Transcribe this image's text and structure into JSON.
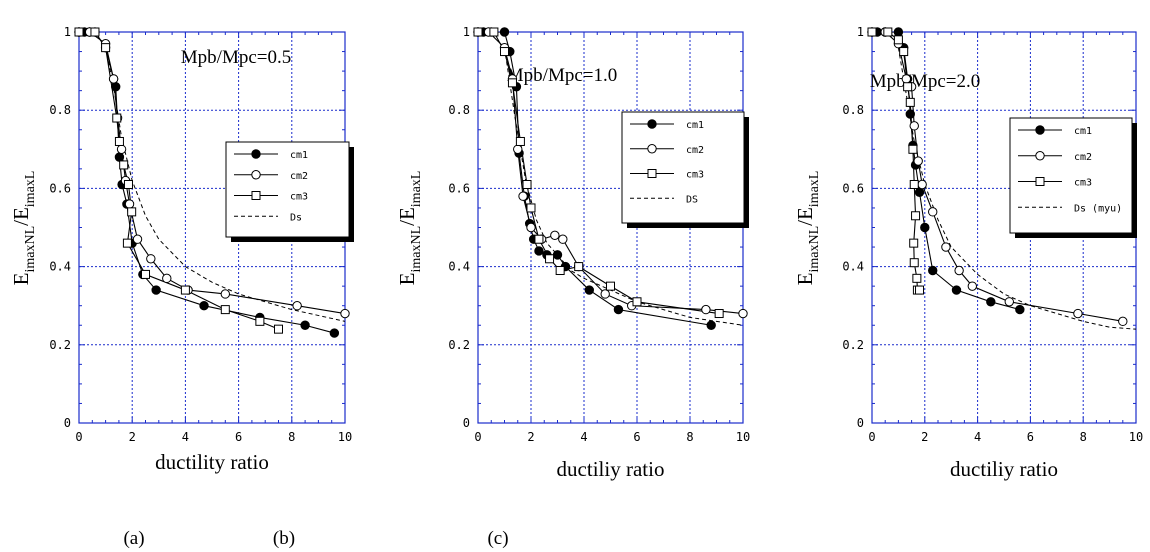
{
  "chart_data": [
    {
      "type": "line",
      "ylabel": {
        "main1": "E",
        "sub1": "imaxNL",
        "main2": "/E",
        "sub2": "imaxL"
      },
      "xlabel": "ductility ratio",
      "annotation": "Mpb/Mpc=0.5",
      "xlim": [
        0,
        10
      ],
      "ylim": [
        0,
        1
      ],
      "xticks": [
        "0",
        "2",
        "4",
        "6",
        "8",
        "10"
      ],
      "yticks": [
        "0",
        "0.2",
        "0.4",
        "0.6",
        "0.8",
        "1"
      ],
      "grid": true,
      "legend": [
        "cm1",
        "cm2",
        "cm3",
        "Ds"
      ],
      "series": [
        {
          "name": "cm1",
          "marker": "filled-circle",
          "x": [
            0,
            0.2,
            0.4,
            0.6,
            1.0,
            1.3,
            1.38,
            1.52,
            1.62,
            1.8,
            2.0,
            2.4,
            2.9,
            4.7,
            6.8,
            8.5,
            9.6
          ],
          "y": [
            1,
            1,
            1,
            1,
            0.96,
            0.88,
            0.86,
            0.68,
            0.61,
            0.56,
            0.46,
            0.38,
            0.34,
            0.3,
            0.27,
            0.25,
            0.23
          ]
        },
        {
          "name": "cm2",
          "marker": "open-circle",
          "x": [
            0,
            0.4,
            1.0,
            1.3,
            1.45,
            1.6,
            1.75,
            1.9,
            2.2,
            2.7,
            3.3,
            4.1,
            5.5,
            8.2,
            10
          ],
          "y": [
            1,
            1,
            0.97,
            0.88,
            0.78,
            0.7,
            0.62,
            0.56,
            0.47,
            0.42,
            0.37,
            0.34,
            0.33,
            0.3,
            0.28
          ]
        },
        {
          "name": "cm3",
          "marker": "open-square",
          "x": [
            0,
            0.6,
            1.0,
            1.42,
            1.52,
            1.68,
            1.86,
            1.98,
            1.82,
            2.5,
            4.0,
            5.5,
            6.8,
            7.5
          ],
          "y": [
            1,
            1,
            0.96,
            0.78,
            0.72,
            0.66,
            0.61,
            0.54,
            0.46,
            0.38,
            0.34,
            0.29,
            0.26,
            0.24
          ]
        },
        {
          "name": "Ds",
          "marker": "none",
          "dashed": true,
          "x": [
            1.0,
            1.3,
            1.6,
            2.0,
            2.5,
            3.0,
            4.0,
            5.0,
            6.0,
            8.0,
            10
          ],
          "y": [
            0.96,
            0.86,
            0.73,
            0.62,
            0.53,
            0.47,
            0.4,
            0.36,
            0.33,
            0.29,
            0.26
          ]
        }
      ]
    },
    {
      "type": "line",
      "ylabel": {
        "main1": "E",
        "sub1": "imaxNL",
        "main2": "/E",
        "sub2": "imaxL"
      },
      "xlabel": "ductiliy ratio",
      "annotation": "Mpb/Mpc=1.0",
      "xlim": [
        0,
        10
      ],
      "ylim": [
        0,
        1
      ],
      "xticks": [
        "0",
        "2",
        "4",
        "6",
        "8",
        "10"
      ],
      "yticks": [
        "0",
        "0.2",
        "0.4",
        "0.6",
        "0.8",
        "1"
      ],
      "grid": true,
      "legend": [
        "cm1",
        "cm2",
        "cm3",
        "DS"
      ],
      "series": [
        {
          "name": "cm1",
          "marker": "filled-circle",
          "x": [
            0,
            0.2,
            0.5,
            1.0,
            1.2,
            1.45,
            1.55,
            1.75,
            1.95,
            2.1,
            2.3,
            2.6,
            3.0,
            3.3,
            4.2,
            5.3,
            8.8
          ],
          "y": [
            1,
            1,
            1,
            1,
            0.95,
            0.86,
            0.69,
            0.58,
            0.51,
            0.47,
            0.44,
            0.43,
            0.43,
            0.4,
            0.34,
            0.29,
            0.25
          ]
        },
        {
          "name": "cm2",
          "marker": "open-circle",
          "x": [
            0,
            0.4,
            1.0,
            1.3,
            1.5,
            1.7,
            2.0,
            2.4,
            2.9,
            3.2,
            3.8,
            4.8,
            5.8,
            8.6,
            10
          ],
          "y": [
            1,
            1,
            0.96,
            0.88,
            0.7,
            0.58,
            0.5,
            0.47,
            0.48,
            0.47,
            0.4,
            0.33,
            0.3,
            0.29,
            0.28
          ]
        },
        {
          "name": "cm3",
          "marker": "open-square",
          "x": [
            0,
            0.6,
            1.0,
            1.3,
            1.6,
            1.85,
            2.0,
            2.3,
            2.7,
            3.1,
            3.8,
            5.0,
            6.0,
            9.1
          ],
          "y": [
            1,
            1,
            0.95,
            0.87,
            0.72,
            0.61,
            0.55,
            0.47,
            0.42,
            0.39,
            0.4,
            0.35,
            0.31,
            0.28
          ]
        },
        {
          "name": "DS",
          "marker": "none",
          "dashed": true,
          "x": [
            1.0,
            1.4,
            1.8,
            2.2,
            2.6,
            3.0,
            3.5,
            4.0,
            5.0,
            6.0,
            7.0,
            8.0,
            9.0,
            10
          ],
          "y": [
            0.96,
            0.78,
            0.62,
            0.52,
            0.46,
            0.43,
            0.39,
            0.37,
            0.34,
            0.31,
            0.29,
            0.27,
            0.26,
            0.25
          ]
        }
      ]
    },
    {
      "type": "line",
      "ylabel": {
        "main1": "E",
        "sub1": "imaxNL",
        "main2": "/E",
        "sub2": "imaxL"
      },
      "xlabel": "ductiliy ratio",
      "annotation": "Mpb/Mpc=2.0",
      "xlim": [
        0,
        10
      ],
      "ylim": [
        0,
        1
      ],
      "xticks": [
        "0",
        "2",
        "4",
        "6",
        "8",
        "10"
      ],
      "yticks": [
        "0",
        "0.2",
        "0.4",
        "0.6",
        "0.8",
        "1"
      ],
      "grid": true,
      "legend": [
        "cm1",
        "cm2",
        "cm3",
        "Ds (myu)"
      ],
      "series": [
        {
          "name": "cm1",
          "marker": "filled-circle",
          "x": [
            0,
            0.2,
            0.5,
            1.0,
            1.2,
            1.35,
            1.45,
            1.55,
            1.65,
            1.8,
            2.0,
            2.3,
            3.2,
            4.5,
            5.6
          ],
          "y": [
            1,
            1,
            1,
            1,
            0.96,
            0.88,
            0.79,
            0.71,
            0.66,
            0.59,
            0.5,
            0.39,
            0.34,
            0.31,
            0.29
          ]
        },
        {
          "name": "cm2",
          "marker": "open-circle",
          "x": [
            0,
            0.5,
            1.0,
            1.3,
            1.5,
            1.6,
            1.75,
            1.9,
            2.3,
            2.8,
            3.3,
            3.8,
            5.2,
            7.8,
            9.5
          ],
          "y": [
            1,
            1,
            0.97,
            0.88,
            0.86,
            0.76,
            0.67,
            0.61,
            0.54,
            0.45,
            0.39,
            0.35,
            0.31,
            0.28,
            0.26
          ]
        },
        {
          "name": "cm3",
          "marker": "open-square",
          "x": [
            0,
            0.6,
            1.0,
            1.2,
            1.35,
            1.45,
            1.55,
            1.6,
            1.65,
            1.58,
            1.6,
            1.7,
            1.72,
            1.8
          ],
          "y": [
            1,
            1,
            0.98,
            0.95,
            0.86,
            0.82,
            0.7,
            0.61,
            0.53,
            0.46,
            0.41,
            0.37,
            0.34,
            0.34
          ]
        },
        {
          "name": "Ds (myu)",
          "marker": "none",
          "dashed": true,
          "x": [
            1.0,
            1.3,
            1.6,
            2.0,
            2.5,
            3.0,
            4.0,
            5.0,
            6.0,
            7.0,
            8.0,
            9.0,
            10
          ],
          "y": [
            0.96,
            0.84,
            0.72,
            0.61,
            0.52,
            0.45,
            0.38,
            0.33,
            0.3,
            0.28,
            0.26,
            0.245,
            0.24
          ]
        }
      ]
    }
  ],
  "captions": [
    "(a)",
    "(b)",
    "(c)"
  ]
}
